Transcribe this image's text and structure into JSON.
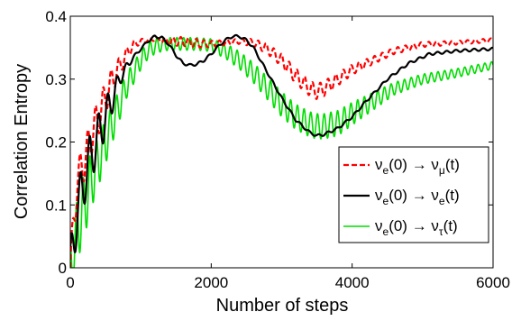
{
  "chart_data": {
    "type": "line",
    "title": "",
    "xlabel": "Number of steps",
    "ylabel": "Correlation Entropy",
    "xlim": [
      0,
      6000
    ],
    "ylim": [
      0,
      0.4
    ],
    "xticks": [
      0,
      2000,
      4000,
      6000
    ],
    "yticks": [
      0,
      0.1,
      0.2,
      0.3,
      0.4
    ],
    "xtick_labels": [
      "0",
      "2000",
      "4000",
      "6000"
    ],
    "ytick_labels": [
      "0",
      "0.1",
      "0.2",
      "0.3",
      "0.4"
    ],
    "grid": false,
    "legend_position": "center-right",
    "series": [
      {
        "name": "ν_e(0) → ν_μ(t)",
        "legend": {
          "pre": "ν",
          "pre_sub": "e",
          "mid": "(0) → ν",
          "post_sub": "μ",
          "post": "(t)"
        },
        "color": "#ff0000",
        "style": "dashed",
        "x": [
          0,
          100,
          200,
          300,
          400,
          500,
          600,
          700,
          800,
          900,
          1000,
          1100,
          1200,
          1300,
          1400,
          1500,
          1600,
          1700,
          1800,
          1900,
          2000,
          2200,
          2400,
          2600,
          2800,
          3000,
          3200,
          3400,
          3500,
          3600,
          3800,
          4000,
          4300,
          4600,
          5000,
          5500,
          6000
        ],
        "y": [
          0.0,
          0.14,
          0.17,
          0.21,
          0.24,
          0.27,
          0.3,
          0.32,
          0.34,
          0.355,
          0.36,
          0.362,
          0.363,
          0.362,
          0.36,
          0.36,
          0.36,
          0.358,
          0.357,
          0.356,
          0.356,
          0.358,
          0.36,
          0.358,
          0.348,
          0.33,
          0.305,
          0.285,
          0.28,
          0.285,
          0.3,
          0.315,
          0.33,
          0.345,
          0.355,
          0.358,
          0.362
        ],
        "osc": [
          0.03,
          0.03,
          0.03,
          0.03,
          0.03,
          0.025,
          0.02,
          0.015,
          0.01,
          0.006,
          0.004,
          0.003,
          0.002,
          0.004,
          0.006,
          0.007,
          0.007,
          0.007,
          0.007,
          0.006,
          0.005,
          0.004,
          0.004,
          0.006,
          0.008,
          0.01,
          0.012,
          0.012,
          0.012,
          0.012,
          0.01,
          0.008,
          0.006,
          0.005,
          0.004,
          0.003,
          0.003
        ]
      },
      {
        "name": "ν_e(0) → ν_e(t)",
        "legend": {
          "pre": "ν",
          "pre_sub": "e",
          "mid": "(0) → ν",
          "post_sub": "e",
          "post": "(t)"
        },
        "color": "#000000",
        "style": "solid",
        "x": [
          0,
          100,
          200,
          300,
          400,
          500,
          600,
          700,
          800,
          900,
          1000,
          1100,
          1200,
          1300,
          1400,
          1500,
          1600,
          1700,
          1800,
          1900,
          2000,
          2100,
          2200,
          2300,
          2400,
          2500,
          2600,
          2700,
          2800,
          3000,
          3200,
          3400,
          3500,
          3600,
          3800,
          4000,
          4200,
          4500,
          4800,
          5100,
          5500,
          6000
        ],
        "y": [
          0.0,
          0.09,
          0.14,
          0.18,
          0.21,
          0.24,
          0.27,
          0.3,
          0.32,
          0.335,
          0.348,
          0.36,
          0.368,
          0.366,
          0.355,
          0.338,
          0.325,
          0.322,
          0.324,
          0.33,
          0.34,
          0.352,
          0.362,
          0.368,
          0.368,
          0.362,
          0.35,
          0.33,
          0.31,
          0.27,
          0.235,
          0.215,
          0.21,
          0.212,
          0.222,
          0.24,
          0.265,
          0.3,
          0.325,
          0.34,
          0.345,
          0.348
        ],
        "osc": [
          0.04,
          0.04,
          0.04,
          0.04,
          0.035,
          0.03,
          0.022,
          0.012,
          0.006,
          0.003,
          0.002,
          0.002,
          0.002,
          0.002,
          0.002,
          0.002,
          0.002,
          0.002,
          0.002,
          0.002,
          0.002,
          0.002,
          0.002,
          0.002,
          0.002,
          0.002,
          0.002,
          0.002,
          0.002,
          0.002,
          0.002,
          0.002,
          0.002,
          0.002,
          0.002,
          0.002,
          0.002,
          0.002,
          0.002,
          0.002,
          0.002,
          0.002
        ]
      },
      {
        "name": "ν_e(0) → ν_τ(t)",
        "legend": {
          "pre": "ν",
          "pre_sub": "e",
          "mid": "(0) → ν",
          "post_sub": "τ",
          "post": "(t)"
        },
        "color": "#00dd00",
        "style": "solid",
        "x": [
          0,
          100,
          200,
          300,
          400,
          500,
          600,
          700,
          800,
          900,
          1000,
          1100,
          1200,
          1300,
          1400,
          1600,
          1800,
          2000,
          2200,
          2400,
          2600,
          2800,
          3000,
          3200,
          3400,
          3500,
          3600,
          3800,
          4000,
          4300,
          4600,
          5000,
          5500,
          6000
        ],
        "y": [
          0.0,
          0.06,
          0.1,
          0.14,
          0.17,
          0.2,
          0.23,
          0.26,
          0.29,
          0.31,
          0.33,
          0.345,
          0.352,
          0.355,
          0.356,
          0.356,
          0.356,
          0.354,
          0.345,
          0.33,
          0.31,
          0.285,
          0.26,
          0.24,
          0.228,
          0.225,
          0.225,
          0.23,
          0.245,
          0.265,
          0.285,
          0.3,
          0.31,
          0.322
        ],
        "osc": [
          0.05,
          0.05,
          0.05,
          0.045,
          0.04,
          0.035,
          0.03,
          0.025,
          0.02,
          0.017,
          0.015,
          0.013,
          0.012,
          0.011,
          0.01,
          0.01,
          0.01,
          0.01,
          0.012,
          0.014,
          0.016,
          0.018,
          0.02,
          0.02,
          0.02,
          0.02,
          0.02,
          0.02,
          0.018,
          0.014,
          0.01,
          0.008,
          0.007,
          0.006
        ]
      }
    ]
  }
}
